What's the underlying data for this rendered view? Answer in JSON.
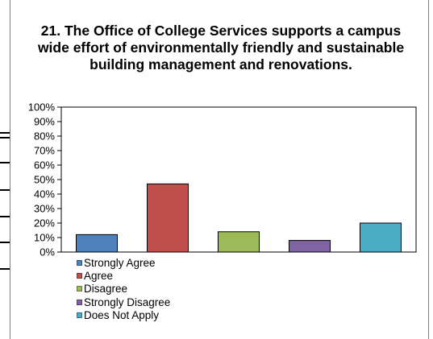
{
  "chart_data": {
    "type": "bar",
    "title": "21. The Office of College Services supports a campus wide effort of environmentally friendly and sustainable building management and renovations.",
    "categories": [
      "Strongly Agree",
      "Agree",
      "Disagree",
      "Strongly Disagree",
      "Does Not Apply"
    ],
    "values": [
      12,
      47,
      14,
      8,
      20
    ],
    "colors": [
      "#4f81bd",
      "#c0504d",
      "#9bbb59",
      "#8064a2",
      "#4bacc6"
    ],
    "y_ticks": [
      "0%",
      "10%",
      "20%",
      "30%",
      "40%",
      "50%",
      "60%",
      "70%",
      "80%",
      "90%",
      "100%"
    ],
    "ylim": [
      0,
      100
    ],
    "y_unit": "%",
    "grid": false,
    "legend_position": "bottom-left"
  }
}
